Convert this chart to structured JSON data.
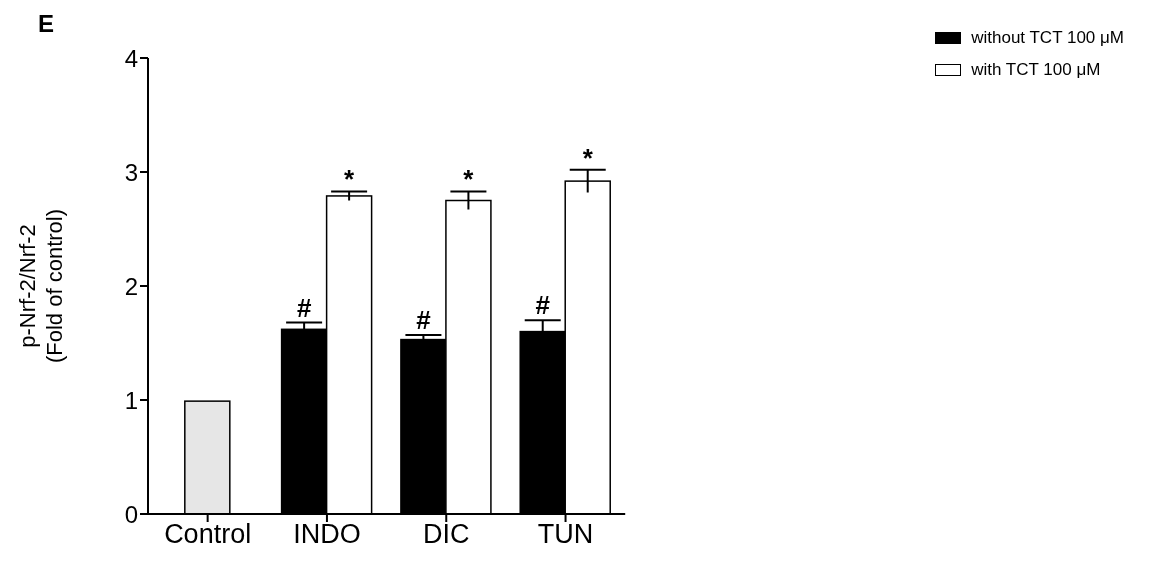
{
  "chart_data": {
    "type": "bar",
    "ylabel": "p-Nrf-2/Nrf-2\n(Fold of control)",
    "categories": [
      "Control",
      "INDO",
      "DIC",
      "TUN"
    ],
    "series": [
      {
        "color": "#e6e6e6",
        "values": [
          0.99,
          null,
          null,
          null
        ]
      },
      {
        "name": "without TCT 100 μM",
        "color": "#000000",
        "values": [
          null,
          1.62,
          1.53,
          1.6
        ],
        "errors": [
          null,
          0.06,
          0.04,
          0.1
        ]
      },
      {
        "name": "with TCT 100 μM",
        "color": "#ffffff",
        "values": [
          null,
          2.79,
          2.75,
          2.92
        ],
        "errors": [
          null,
          0.04,
          0.08,
          0.1
        ]
      }
    ],
    "ylim": [
      0,
      4
    ],
    "yticks": [
      0,
      1,
      2,
      3,
      4
    ],
    "grid": false,
    "legend": "top right",
    "annotations": [
      "E",
      {
        "text": "#",
        "x": "INDO",
        "y": 1.7
      },
      {
        "text": "#",
        "x": "DIC",
        "y": 1.6
      },
      {
        "text": "#",
        "x": "TUN",
        "y": 1.73
      },
      {
        "text": "*",
        "x": "INDO",
        "y": 2.83
      },
      {
        "text": "*",
        "x": "DIC",
        "y": 2.83
      },
      {
        "text": "*",
        "x": "TUN",
        "y": 3.02
      }
    ]
  }
}
